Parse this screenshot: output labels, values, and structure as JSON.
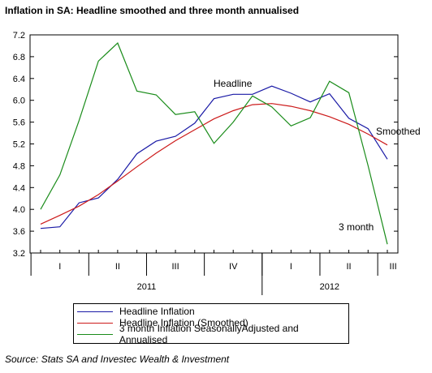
{
  "title": "Inflation in SA: Headline smoothed and three month annualised",
  "source": "Source: Stats SA and Investec Wealth & Investment",
  "chart_data": {
    "type": "line",
    "ylim": [
      3.2,
      7.2
    ],
    "yticks": [
      "7.2",
      "6.8",
      "6.4",
      "6.0",
      "5.6",
      "5.2",
      "4.8",
      "4.4",
      "4.0",
      "3.6",
      "3.2"
    ],
    "quarter_labels": [
      "I",
      "II",
      "III",
      "IV",
      "I",
      "II",
      "III"
    ],
    "year_labels": [
      "2011",
      "2012"
    ],
    "x_months": [
      "2011-01",
      "2011-02",
      "2011-03",
      "2011-04",
      "2011-05",
      "2011-06",
      "2011-07",
      "2011-08",
      "2011-09",
      "2011-10",
      "2011-11",
      "2011-12",
      "2012-01",
      "2012-02",
      "2012-03",
      "2012-04",
      "2012-05",
      "2012-06",
      "2012-07"
    ],
    "series": [
      {
        "name": "Headline Inflation",
        "color": "#1a1aa6",
        "values": [
          3.65,
          3.68,
          4.12,
          4.21,
          4.55,
          5.02,
          5.25,
          5.34,
          5.58,
          6.03,
          6.11,
          6.11,
          6.26,
          6.13,
          5.97,
          6.12,
          5.67,
          5.48,
          4.92
        ]
      },
      {
        "name": "Headline Inflation (Smoothed)",
        "color": "#cc1a1a",
        "values": [
          3.73,
          3.89,
          4.06,
          4.27,
          4.52,
          4.78,
          5.03,
          5.26,
          5.46,
          5.66,
          5.81,
          5.92,
          5.94,
          5.89,
          5.81,
          5.7,
          5.56,
          5.38,
          5.18
        ]
      },
      {
        "name": "3 month Inflation SeasonallyAdjusted and Annualised",
        "color": "#1a8c1a",
        "values": [
          4.0,
          4.63,
          5.63,
          6.72,
          7.05,
          6.17,
          6.1,
          5.74,
          5.79,
          5.21,
          5.6,
          6.08,
          5.88,
          5.53,
          5.68,
          6.35,
          6.14,
          4.8,
          3.36
        ]
      }
    ],
    "annotations": {
      "headline": "Headline",
      "smoothed": "Smoothed",
      "three_month": "3  month"
    },
    "grid": false,
    "legend_position": "bottom"
  }
}
